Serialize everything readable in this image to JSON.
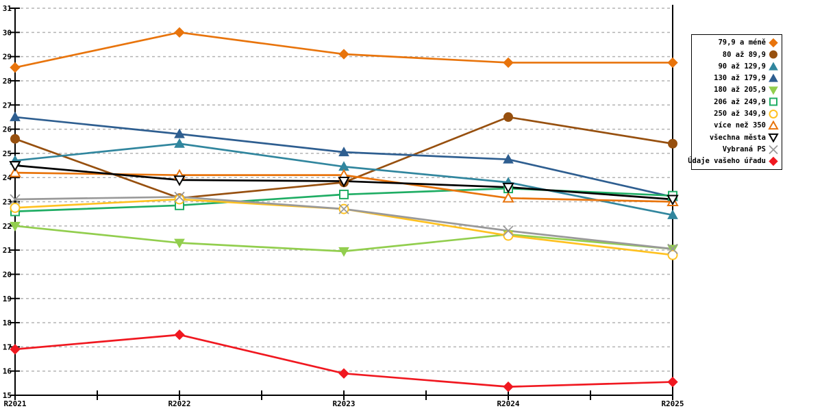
{
  "page": {
    "background": "#ffffff"
  },
  "chart_data": {
    "type": "line",
    "title": "",
    "xlabel": "",
    "ylabel": "",
    "categories": [
      "R2021",
      "R2022",
      "R2023",
      "R2024",
      "R2025"
    ],
    "ylim": [
      15,
      31
    ],
    "y_tick_step": 1,
    "grid": "horizontal-dashed",
    "grid_color": "#b3b3b3",
    "axis_color": "#000000",
    "legend_position": "right",
    "x_minor_ticks_between_categories": true,
    "current_period_line_at": "R2025",
    "series": [
      {
        "name": "79,9 a méně",
        "marker": "diamond",
        "style": "filled",
        "color": "#E8740C",
        "values": [
          28.55,
          30.0,
          29.1,
          28.75,
          28.75
        ]
      },
      {
        "name": "80 až 89,9",
        "marker": "circle",
        "style": "filled",
        "color": "#97500F",
        "values": [
          25.6,
          23.15,
          23.8,
          26.5,
          25.4
        ]
      },
      {
        "name": "90 až 129,9",
        "marker": "triangle-up",
        "style": "filled",
        "color": "#31869E",
        "values": [
          24.7,
          25.4,
          24.45,
          23.8,
          22.45
        ]
      },
      {
        "name": "130 až 179,9",
        "marker": "triangle-up",
        "style": "filled",
        "color": "#2E5E90",
        "values": [
          26.5,
          25.8,
          25.05,
          24.75,
          23.2
        ]
      },
      {
        "name": "180 až 205,9",
        "marker": "triangle-down",
        "style": "filled",
        "color": "#92CE4E",
        "values": [
          22.0,
          21.3,
          20.95,
          21.65,
          21.05
        ]
      },
      {
        "name": "206 až 249,9",
        "marker": "square",
        "style": "open",
        "color": "#1FAD64",
        "values": [
          22.6,
          22.85,
          23.3,
          23.55,
          23.25
        ]
      },
      {
        "name": "250 až 349,9",
        "marker": "circle",
        "style": "open",
        "color": "#FFC120",
        "values": [
          22.75,
          23.1,
          22.7,
          21.6,
          20.8
        ]
      },
      {
        "name": "více než 350",
        "marker": "triangle-up",
        "style": "open",
        "color": "#E8740C",
        "values": [
          24.2,
          24.1,
          24.1,
          23.15,
          23.0
        ]
      },
      {
        "name": "všechna města",
        "marker": "triangle-down",
        "style": "open",
        "color": "#000000",
        "values": [
          24.5,
          23.9,
          23.85,
          23.6,
          23.1
        ]
      },
      {
        "name": "Vybraná PS",
        "marker": "x",
        "style": "open",
        "color": "#999999",
        "values": [
          23.1,
          23.2,
          22.7,
          21.8,
          21.05
        ]
      },
      {
        "name": "Údaje vašeho úřadu",
        "marker": "diamond",
        "style": "filled",
        "color": "#F01820",
        "values": [
          16.9,
          17.5,
          15.9,
          15.35,
          15.55
        ]
      }
    ]
  }
}
